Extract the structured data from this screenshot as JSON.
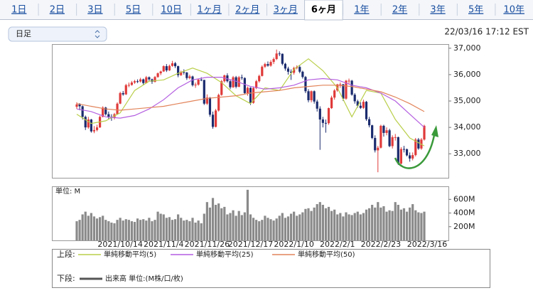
{
  "tabs": [
    "1日",
    "2日",
    "3日",
    "5日",
    "10日",
    "1ヶ月",
    "2ヶ月",
    "3ヶ月",
    "6ヶ月",
    "1年",
    "2年",
    "3年",
    "5年",
    "10年"
  ],
  "active_tab": 8,
  "interval_select": "日足",
  "timestamp": "22/03/16 17:12 EST",
  "chart_data": [
    {
      "type": "candlestick",
      "up_color": "#e03a3a",
      "down_color": "#1b2b6e",
      "candles": [
        [
          34780,
          34950,
          34700,
          34870
        ],
        [
          34870,
          34920,
          34650,
          34800
        ],
        [
          34800,
          34830,
          34300,
          34400
        ],
        [
          34400,
          34450,
          33900,
          34000
        ],
        [
          34000,
          34400,
          33950,
          34300
        ],
        [
          34300,
          34320,
          33800,
          33850
        ],
        [
          33850,
          34050,
          33780,
          33900
        ],
        [
          33900,
          34100,
          33850,
          34000
        ],
        [
          34000,
          34450,
          33980,
          34400
        ],
        [
          34400,
          34800,
          34380,
          34750
        ],
        [
          34750,
          34780,
          34450,
          34500
        ],
        [
          34500,
          34600,
          34300,
          34400
        ],
        [
          34400,
          34500,
          34250,
          34380
        ],
        [
          34380,
          34550,
          34300,
          34500
        ],
        [
          34500,
          34950,
          34480,
          34900
        ],
        [
          34900,
          35350,
          34880,
          35300
        ],
        [
          35300,
          35380,
          35200,
          35250
        ],
        [
          35250,
          35650,
          35230,
          35600
        ],
        [
          35600,
          35700,
          35520,
          35610
        ],
        [
          35610,
          35760,
          35580,
          35700
        ],
        [
          35700,
          35800,
          35650,
          35750
        ],
        [
          35750,
          35820,
          35680,
          35740
        ],
        [
          35740,
          35880,
          35700,
          35820
        ],
        [
          35820,
          35850,
          35600,
          35680
        ],
        [
          35680,
          35950,
          35660,
          35900
        ],
        [
          35900,
          35930,
          35750,
          35820
        ],
        [
          35820,
          35850,
          35650,
          35730
        ],
        [
          35730,
          35950,
          35700,
          35910
        ],
        [
          35910,
          36080,
          35880,
          36050
        ],
        [
          36050,
          36150,
          35980,
          36120
        ],
        [
          36120,
          36350,
          36100,
          36320
        ],
        [
          36320,
          36400,
          36100,
          36160
        ],
        [
          36160,
          36380,
          36140,
          36330
        ],
        [
          36330,
          36520,
          36300,
          36430
        ],
        [
          36430,
          36480,
          36250,
          36320
        ],
        [
          36320,
          36340,
          35900,
          35980
        ],
        [
          35980,
          36150,
          35950,
          36100
        ],
        [
          36100,
          36200,
          36000,
          36080
        ],
        [
          36080,
          36100,
          35800,
          35870
        ],
        [
          35870,
          36000,
          35820,
          35930
        ],
        [
          35930,
          35960,
          35550,
          35600
        ],
        [
          35600,
          35700,
          35500,
          35620
        ],
        [
          35620,
          35850,
          35580,
          35810
        ],
        [
          35810,
          35900,
          35750,
          35800
        ],
        [
          35800,
          35800,
          34850,
          34900
        ],
        [
          34900,
          35250,
          34850,
          35130
        ],
        [
          35130,
          35150,
          34400,
          34480
        ],
        [
          34480,
          34600,
          33950,
          34020
        ],
        [
          34020,
          34700,
          34000,
          34640
        ],
        [
          34640,
          35280,
          34600,
          35230
        ],
        [
          35230,
          35800,
          35200,
          35750
        ],
        [
          35750,
          36000,
          35700,
          35970
        ],
        [
          35970,
          36050,
          35700,
          35750
        ],
        [
          35750,
          35800,
          35450,
          35520
        ],
        [
          35520,
          35950,
          35500,
          35900
        ],
        [
          35900,
          35950,
          35480,
          35540
        ],
        [
          35540,
          35950,
          35520,
          35900
        ],
        [
          35900,
          36000,
          35800,
          35870
        ],
        [
          35870,
          35900,
          35250,
          35300
        ],
        [
          35300,
          35550,
          35200,
          35500
        ],
        [
          35500,
          35520,
          34850,
          34930
        ],
        [
          34930,
          35550,
          34900,
          35490
        ],
        [
          35490,
          35800,
          35450,
          35750
        ],
        [
          35750,
          36000,
          35700,
          35950
        ],
        [
          35950,
          36350,
          35930,
          36300
        ],
        [
          36300,
          36450,
          36250,
          36400
        ],
        [
          36400,
          36500,
          36300,
          36340
        ],
        [
          36340,
          36550,
          36300,
          36480
        ],
        [
          36480,
          36650,
          36400,
          36590
        ],
        [
          36590,
          36950,
          36550,
          36800
        ],
        [
          36800,
          36880,
          36700,
          36790
        ],
        [
          36790,
          36800,
          36350,
          36410
        ],
        [
          36410,
          36450,
          36150,
          36230
        ],
        [
          36230,
          36300,
          36000,
          36110
        ],
        [
          36110,
          36200,
          35800,
          36070
        ],
        [
          36070,
          36300,
          36000,
          36250
        ],
        [
          36250,
          36350,
          36200,
          36290
        ],
        [
          36290,
          36350,
          36050,
          36110
        ],
        [
          36110,
          36150,
          35850,
          35910
        ],
        [
          35910,
          35950,
          35300,
          35370
        ],
        [
          35370,
          35450,
          34950,
          35030
        ],
        [
          35030,
          35400,
          34950,
          35370
        ],
        [
          35370,
          35400,
          34900,
          34980
        ],
        [
          34980,
          35050,
          34600,
          34710
        ],
        [
          34710,
          34800,
          33150,
          34300
        ],
        [
          34300,
          34400,
          34000,
          34170
        ],
        [
          34170,
          34300,
          33800,
          34160
        ],
        [
          34160,
          34750,
          34100,
          34730
        ],
        [
          34730,
          35200,
          34700,
          35130
        ],
        [
          35130,
          35450,
          35050,
          35400
        ],
        [
          35400,
          35650,
          35350,
          35630
        ],
        [
          35630,
          35700,
          35500,
          35630
        ],
        [
          35630,
          35650,
          35000,
          35090
        ],
        [
          35090,
          35800,
          35050,
          35770
        ],
        [
          35770,
          35850,
          35650,
          35770
        ],
        [
          35770,
          35800,
          35200,
          35240
        ],
        [
          35240,
          35300,
          34900,
          34990
        ],
        [
          34990,
          35050,
          34750,
          34820
        ],
        [
          34820,
          34950,
          34700,
          34740
        ],
        [
          34740,
          35050,
          34700,
          34970
        ],
        [
          34970,
          35000,
          34250,
          34310
        ],
        [
          34310,
          34400,
          34000,
          34080
        ],
        [
          34080,
          34100,
          33550,
          33600
        ],
        [
          33600,
          33700,
          33050,
          33130
        ],
        [
          33130,
          33300,
          32300,
          33230
        ],
        [
          33230,
          34100,
          33200,
          34060
        ],
        [
          34060,
          34100,
          33650,
          33790
        ],
        [
          33790,
          34000,
          33700,
          33890
        ],
        [
          33890,
          33950,
          33250,
          33290
        ],
        [
          33290,
          33700,
          33200,
          33630
        ],
        [
          33630,
          33750,
          33500,
          33630
        ],
        [
          33630,
          33650,
          32580,
          32630
        ],
        [
          32630,
          33250,
          32600,
          33180
        ],
        [
          33180,
          33300,
          33050,
          33170
        ],
        [
          33170,
          33200,
          32900,
          32940
        ],
        [
          32940,
          33050,
          32700,
          32820
        ],
        [
          32820,
          33050,
          32750,
          32950
        ],
        [
          32950,
          33600,
          32900,
          33540
        ],
        [
          33540,
          33600,
          33150,
          33200
        ],
        [
          33200,
          33600,
          33150,
          33540
        ],
        [
          33540,
          34100,
          33500,
          34060
        ]
      ],
      "series": [
        {
          "name": "単純移動平均(5)",
          "color": "#b9cf4a",
          "x": [
            0,
            5,
            10,
            15,
            20,
            25,
            30,
            35,
            40,
            45,
            50,
            55,
            60,
            65,
            70,
            75,
            80,
            85,
            90,
            95,
            100,
            105,
            110,
            115,
            120
          ],
          "values": [
            34500,
            34150,
            34250,
            34550,
            35400,
            35750,
            35800,
            36050,
            36250,
            36050,
            35700,
            35200,
            34900,
            35500,
            35400,
            36200,
            36600,
            36150,
            35500,
            34400,
            35400,
            35300,
            34300,
            33600,
            33300
          ]
        },
        {
          "name": "単純移動平均(25)",
          "color": "#b45fe0",
          "x": [
            0,
            5,
            10,
            15,
            20,
            25,
            30,
            35,
            40,
            45,
            50,
            55,
            60,
            65,
            70,
            75,
            80,
            85,
            90,
            95,
            100,
            105,
            110,
            115,
            120
          ],
          "values": [
            34700,
            34600,
            34400,
            34350,
            34450,
            34700,
            35050,
            35500,
            35800,
            35900,
            35900,
            35750,
            35550,
            35450,
            35500,
            35600,
            35800,
            35850,
            35800,
            35600,
            35500,
            35300,
            35000,
            34500,
            34000
          ]
        },
        {
          "name": "単純移動平均(50)",
          "color": "#e2845a",
          "x": [
            0,
            5,
            10,
            15,
            20,
            25,
            30,
            35,
            40,
            45,
            50,
            55,
            60,
            65,
            70,
            75,
            80,
            85,
            90,
            95,
            100,
            105,
            110,
            115,
            120
          ],
          "values": [
            34900,
            34800,
            34700,
            34650,
            34700,
            34750,
            34800,
            34900,
            35000,
            35100,
            35150,
            35200,
            35300,
            35350,
            35400,
            35500,
            35550,
            35600,
            35600,
            35550,
            35450,
            35350,
            35150,
            34900,
            34600
          ]
        }
      ],
      "ylim": [
        32090,
        37130
      ],
      "yticks": [
        {
          "value": 33000,
          "label": "33,000"
        },
        {
          "value": 34000,
          "label": "34,000"
        },
        {
          "value": 35000,
          "label": "35,000"
        },
        {
          "value": 36000,
          "label": "36,000"
        },
        {
          "value": 37000,
          "label": "37,000"
        }
      ]
    },
    {
      "type": "bar",
      "unit_label": "単位: M",
      "color": "#8a8a8a",
      "name": "出来高 単位:(M株/口/枚)",
      "categories": [
        null,
        null,
        null,
        null,
        null,
        null,
        null,
        null,
        null,
        null,
        null,
        null,
        null,
        null,
        null,
        "2021/10/14",
        null,
        null,
        null,
        null,
        null,
        null,
        null,
        null,
        null,
        null,
        null,
        null,
        null,
        null,
        "2021/11/4",
        null,
        null,
        null,
        null,
        null,
        null,
        null,
        null,
        null,
        null,
        null,
        null,
        null,
        null,
        "2021/11/26",
        null,
        null,
        null,
        null,
        null,
        null,
        null,
        null,
        null,
        null,
        null,
        null,
        null,
        null,
        "2021/12/17",
        null,
        null,
        null,
        null,
        null,
        null,
        null,
        null,
        null,
        null,
        null,
        null,
        null,
        null,
        "2022/1/10",
        null,
        null,
        null,
        null,
        null,
        null,
        null,
        null,
        null,
        null,
        null,
        null,
        null,
        null,
        "2022/2/1",
        null,
        null,
        null,
        null,
        null,
        null,
        null,
        null,
        null,
        null,
        null,
        null,
        null,
        null,
        "2022/2/23",
        null,
        null,
        null,
        null,
        null,
        null,
        null,
        null,
        null,
        null,
        null,
        null,
        null,
        null,
        "2022/3/16"
      ],
      "values": [
        280,
        300,
        380,
        420,
        360,
        400,
        350,
        320,
        340,
        360,
        300,
        280,
        260,
        250,
        300,
        330,
        290,
        310,
        300,
        280,
        270,
        320,
        300,
        310,
        290,
        330,
        280,
        300,
        420,
        390,
        380,
        330,
        340,
        300,
        310,
        380,
        330,
        290,
        300,
        280,
        330,
        260,
        290,
        250,
        390,
        560,
        480,
        620,
        520,
        540,
        470,
        490,
        380,
        400,
        440,
        360,
        430,
        370,
        410,
        740,
        380,
        330,
        300,
        280,
        300,
        360,
        330,
        310,
        290,
        320,
        360,
        400,
        330,
        350,
        390,
        420,
        360,
        380,
        410,
        460,
        470,
        430,
        480,
        530,
        560,
        520,
        470,
        490,
        430,
        450,
        380,
        400,
        350,
        410,
        380,
        370,
        400,
        420,
        380,
        400,
        450,
        470,
        520,
        480,
        560,
        480,
        500,
        420,
        440,
        430,
        560,
        520,
        450,
        470,
        420,
        480,
        530,
        440,
        410,
        400,
        420
      ],
      "ylim": [
        0,
        780
      ],
      "yticks": [
        {
          "value": 200,
          "label": "200M"
        },
        {
          "value": 400,
          "label": "400M"
        },
        {
          "value": 600,
          "label": "600M"
        }
      ]
    }
  ],
  "legend": {
    "upper_label": "上段:",
    "lower_label": "下段:"
  }
}
